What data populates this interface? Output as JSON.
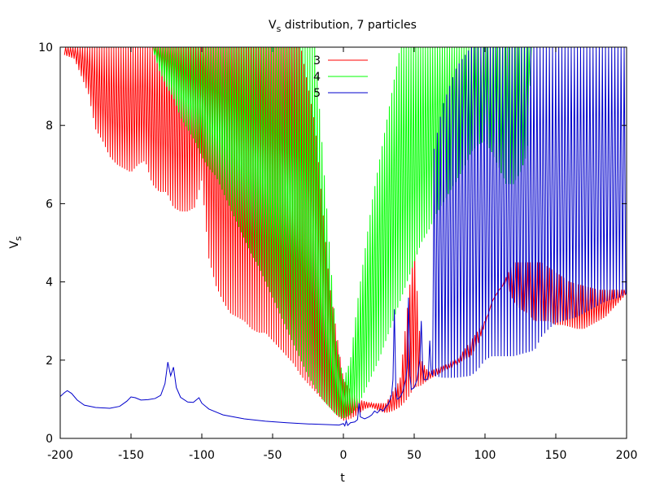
{
  "chart_data": {
    "type": "line",
    "title": "V",
    "title_sub": "s",
    "title_rest": " distribution, 7 particles",
    "xlabel": "t",
    "ylabel": "V",
    "ylabel_sub": "s",
    "xlim": [
      -200,
      200
    ],
    "ylim": [
      0,
      10
    ],
    "x_ticks": [
      -200,
      -150,
      -100,
      -50,
      0,
      50,
      100,
      150,
      200
    ],
    "y_ticks": [
      0,
      2,
      4,
      6,
      8,
      10
    ],
    "x_tick_labels": [
      "-200",
      "-150",
      "-100",
      "-50",
      "0",
      "50",
      "100",
      "150",
      "200"
    ],
    "y_tick_labels": [
      "0",
      "2",
      "4",
      "6",
      "8",
      "10"
    ],
    "grid": false,
    "legend_position": "top-center",
    "series": [
      {
        "name": "3",
        "color": "#ff0000",
        "style": "oscillating",
        "envelope_low": [
          [
            -197,
            9.8
          ],
          [
            -190,
            9.7
          ],
          [
            -180,
            8.8
          ],
          [
            -175,
            7.9
          ],
          [
            -170,
            7.6
          ],
          [
            -165,
            7.2
          ],
          [
            -160,
            7.0
          ],
          [
            -155,
            6.9
          ],
          [
            -150,
            6.8
          ],
          [
            -145,
            7.0
          ],
          [
            -140,
            7.1
          ],
          [
            -135,
            6.5
          ],
          [
            -130,
            6.3
          ],
          [
            -125,
            6.3
          ],
          [
            -120,
            5.9
          ],
          [
            -115,
            5.8
          ],
          [
            -110,
            5.8
          ],
          [
            -105,
            5.9
          ],
          [
            -100,
            6.6
          ],
          [
            -95,
            4.6
          ],
          [
            -90,
            3.9
          ],
          [
            -85,
            3.5
          ],
          [
            -80,
            3.2
          ],
          [
            -75,
            3.1
          ],
          [
            -70,
            3.0
          ],
          [
            -65,
            2.8
          ],
          [
            -60,
            2.7
          ],
          [
            -55,
            2.7
          ],
          [
            -50,
            2.5
          ],
          [
            -45,
            2.3
          ],
          [
            -40,
            2.1
          ],
          [
            -35,
            1.9
          ],
          [
            -30,
            1.6
          ],
          [
            -25,
            1.4
          ],
          [
            -20,
            1.2
          ],
          [
            -15,
            1.0
          ],
          [
            -10,
            0.8
          ],
          [
            -5,
            0.6
          ],
          [
            0,
            0.45
          ],
          [
            5,
            0.5
          ],
          [
            10,
            0.6
          ],
          [
            15,
            0.75
          ],
          [
            20,
            0.8
          ],
          [
            25,
            0.7
          ],
          [
            30,
            0.65
          ],
          [
            35,
            0.7
          ],
          [
            40,
            0.8
          ],
          [
            45,
            1.0
          ],
          [
            50,
            1.3
          ],
          [
            55,
            1.35
          ],
          [
            60,
            1.5
          ],
          [
            65,
            1.6
          ],
          [
            70,
            1.7
          ],
          [
            75,
            1.8
          ],
          [
            80,
            1.9
          ],
          [
            85,
            2.0
          ],
          [
            90,
            2.1
          ],
          [
            95,
            2.4
          ],
          [
            100,
            2.9
          ],
          [
            105,
            3.5
          ],
          [
            110,
            3.8
          ],
          [
            115,
            4.0
          ],
          [
            120,
            3.5
          ],
          [
            125,
            3.3
          ],
          [
            130,
            3.2
          ],
          [
            135,
            3.0
          ],
          [
            140,
            3.0
          ],
          [
            145,
            3.0
          ],
          [
            150,
            2.9
          ],
          [
            155,
            2.9
          ],
          [
            160,
            2.85
          ],
          [
            165,
            2.8
          ],
          [
            170,
            2.8
          ],
          [
            175,
            2.9
          ],
          [
            180,
            3.0
          ],
          [
            185,
            3.1
          ],
          [
            190,
            3.3
          ],
          [
            195,
            3.5
          ],
          [
            200,
            3.7
          ]
        ],
        "envelope_high": [
          [
            -197,
            10
          ],
          [
            -100,
            10
          ],
          [
            -50,
            10
          ],
          [
            -30,
            10
          ],
          [
            -20,
            8.0
          ],
          [
            -10,
            4.0
          ],
          [
            0,
            1.5
          ],
          [
            10,
            1.0
          ],
          [
            20,
            0.9
          ],
          [
            30,
            0.9
          ],
          [
            40,
            1.5
          ],
          [
            50,
            5.0
          ],
          [
            55,
            2.0
          ],
          [
            60,
            1.7
          ],
          [
            80,
            2.0
          ],
          [
            100,
            3.0
          ],
          [
            120,
            4.5
          ],
          [
            140,
            4.5
          ],
          [
            160,
            4.0
          ],
          [
            180,
            3.8
          ],
          [
            200,
            3.8
          ]
        ]
      },
      {
        "name": "4",
        "color": "#00ff00",
        "style": "oscillating",
        "envelope_low": [
          [
            -135,
            10
          ],
          [
            -130,
            9.4
          ],
          [
            -125,
            9.0
          ],
          [
            -120,
            8.7
          ],
          [
            -115,
            8.2
          ],
          [
            -110,
            7.9
          ],
          [
            -105,
            7.6
          ],
          [
            -100,
            7.2
          ],
          [
            -95,
            6.9
          ],
          [
            -90,
            6.7
          ],
          [
            -85,
            6.3
          ],
          [
            -80,
            5.9
          ],
          [
            -75,
            5.5
          ],
          [
            -70,
            5.1
          ],
          [
            -65,
            4.7
          ],
          [
            -60,
            4.4
          ],
          [
            -55,
            4.0
          ],
          [
            -50,
            3.6
          ],
          [
            -45,
            3.2
          ],
          [
            -40,
            2.8
          ],
          [
            -35,
            2.4
          ],
          [
            -30,
            2.0
          ],
          [
            -25,
            1.6
          ],
          [
            -20,
            1.3
          ],
          [
            -15,
            1.0
          ],
          [
            -10,
            0.8
          ],
          [
            -5,
            0.6
          ],
          [
            0,
            0.5
          ],
          [
            5,
            0.6
          ],
          [
            10,
            0.8
          ],
          [
            15,
            1.2
          ],
          [
            20,
            1.6
          ],
          [
            25,
            2.0
          ],
          [
            30,
            2.5
          ],
          [
            35,
            3.0
          ],
          [
            40,
            3.5
          ],
          [
            45,
            4.0
          ],
          [
            50,
            4.5
          ],
          [
            55,
            5.0
          ],
          [
            60,
            5.3
          ],
          [
            65,
            5.7
          ],
          [
            70,
            6.0
          ],
          [
            75,
            6.3
          ],
          [
            80,
            6.6
          ],
          [
            85,
            6.9
          ],
          [
            90,
            7.3
          ],
          [
            95,
            7.5
          ],
          [
            100,
            7.6
          ],
          [
            105,
            7.3
          ],
          [
            110,
            6.9
          ],
          [
            115,
            6.5
          ],
          [
            120,
            6.5
          ],
          [
            125,
            6.8
          ],
          [
            130,
            7.3
          ],
          [
            133,
            10
          ]
        ],
        "envelope_high": [
          [
            -135,
            10
          ],
          [
            -20,
            10
          ],
          [
            -10,
            5.0
          ],
          [
            -5,
            2.5
          ],
          [
            0,
            1.5
          ],
          [
            5,
            2.0
          ],
          [
            10,
            3.5
          ],
          [
            20,
            6.0
          ],
          [
            30,
            8.0
          ],
          [
            40,
            10
          ],
          [
            133,
            10
          ]
        ]
      },
      {
        "name": "5",
        "color": "#0000cc",
        "style": "smooth-then-oscillating",
        "points": [
          [
            -200,
            1.07
          ],
          [
            -197,
            1.17
          ],
          [
            -195,
            1.22
          ],
          [
            -192,
            1.15
          ],
          [
            -188,
            0.98
          ],
          [
            -183,
            0.85
          ],
          [
            -175,
            0.79
          ],
          [
            -165,
            0.77
          ],
          [
            -158,
            0.82
          ],
          [
            -153,
            0.95
          ],
          [
            -150,
            1.06
          ],
          [
            -147,
            1.04
          ],
          [
            -143,
            0.98
          ],
          [
            -138,
            0.99
          ],
          [
            -133,
            1.02
          ],
          [
            -129,
            1.1
          ],
          [
            -126,
            1.4
          ],
          [
            -124,
            1.95
          ],
          [
            -122,
            1.6
          ],
          [
            -120,
            1.82
          ],
          [
            -118,
            1.3
          ],
          [
            -115,
            1.05
          ],
          [
            -110,
            0.93
          ],
          [
            -106,
            0.92
          ],
          [
            -104,
            0.98
          ],
          [
            -102,
            1.04
          ],
          [
            -100,
            0.9
          ],
          [
            -95,
            0.75
          ],
          [
            -85,
            0.6
          ],
          [
            -70,
            0.5
          ],
          [
            -55,
            0.44
          ],
          [
            -40,
            0.4
          ],
          [
            -25,
            0.37
          ],
          [
            -10,
            0.35
          ],
          [
            -3,
            0.34
          ],
          [
            0,
            0.38
          ],
          [
            1,
            0.32
          ],
          [
            2,
            0.45
          ],
          [
            3,
            0.33
          ],
          [
            5,
            0.4
          ],
          [
            8,
            0.42
          ],
          [
            10,
            0.48
          ],
          [
            11,
            0.9
          ],
          [
            12,
            0.55
          ],
          [
            15,
            0.5
          ],
          [
            18,
            0.55
          ],
          [
            20,
            0.6
          ],
          [
            22,
            0.7
          ],
          [
            24,
            0.65
          ],
          [
            26,
            0.75
          ],
          [
            28,
            0.7
          ],
          [
            30,
            0.8
          ],
          [
            32,
            0.9
          ],
          [
            34,
            1.1
          ],
          [
            35,
            1.5
          ],
          [
            36,
            3.3
          ],
          [
            37,
            1.3
          ],
          [
            38,
            1.0
          ],
          [
            40,
            1.05
          ],
          [
            42,
            1.2
          ],
          [
            44,
            1.5
          ],
          [
            45,
            1.8
          ],
          [
            46,
            3.6
          ],
          [
            47,
            1.6
          ],
          [
            48,
            1.25
          ],
          [
            50,
            1.3
          ],
          [
            52,
            1.5
          ],
          [
            54,
            2.0
          ],
          [
            55,
            3.0
          ],
          [
            56,
            1.8
          ],
          [
            57,
            1.5
          ],
          [
            59,
            1.5
          ],
          [
            60,
            1.6
          ],
          [
            61,
            2.5
          ],
          [
            62,
            1.7
          ],
          [
            63,
            1.6
          ]
        ],
        "osc_from": 63,
        "envelope_low": [
          [
            63,
            1.6
          ],
          [
            70,
            1.55
          ],
          [
            80,
            1.55
          ],
          [
            90,
            1.6
          ],
          [
            95,
            1.75
          ],
          [
            100,
            2.0
          ],
          [
            105,
            2.1
          ],
          [
            110,
            2.1
          ],
          [
            115,
            2.1
          ],
          [
            120,
            2.1
          ],
          [
            125,
            2.15
          ],
          [
            130,
            2.2
          ],
          [
            135,
            2.25
          ],
          [
            140,
            2.6
          ],
          [
            145,
            2.8
          ],
          [
            150,
            2.95
          ],
          [
            155,
            3.0
          ],
          [
            160,
            3.05
          ],
          [
            165,
            3.1
          ],
          [
            170,
            3.2
          ],
          [
            175,
            3.3
          ],
          [
            180,
            3.4
          ],
          [
            185,
            3.5
          ],
          [
            190,
            3.55
          ],
          [
            195,
            3.6
          ],
          [
            200,
            3.7
          ]
        ],
        "envelope_high": [
          [
            63,
            7.2
          ],
          [
            70,
            8.5
          ],
          [
            80,
            9.5
          ],
          [
            90,
            10
          ],
          [
            200,
            10
          ]
        ]
      }
    ]
  }
}
